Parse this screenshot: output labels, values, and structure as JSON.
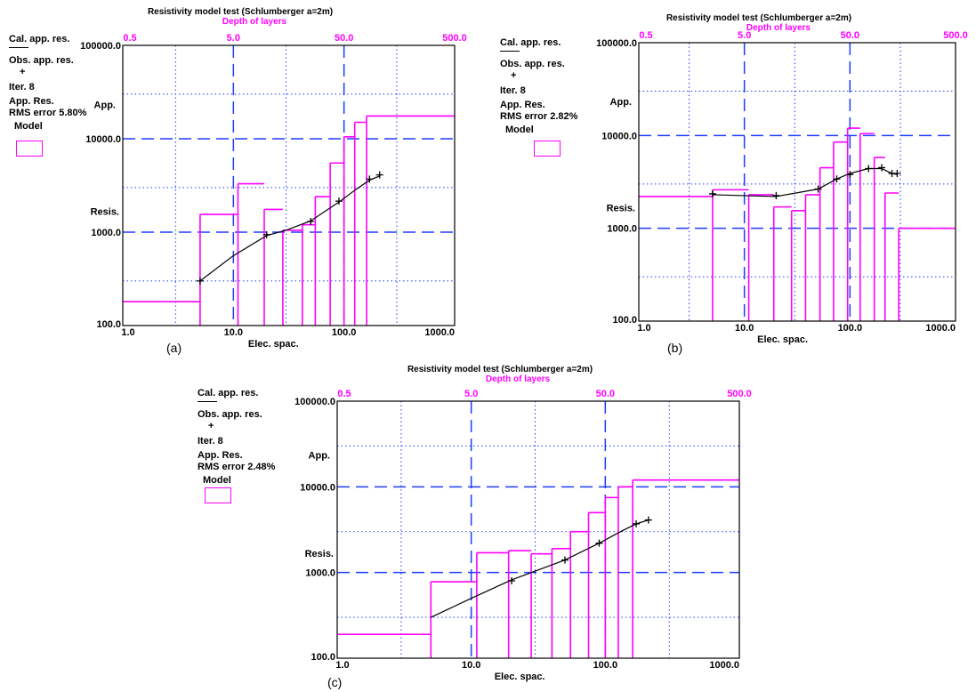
{
  "legend_text": {
    "cal": "Cal. app. res.",
    "obs": "Obs. app. res.",
    "plus": "+",
    "model": "Model"
  },
  "chart_data": [
    {
      "type": "line",
      "subfigure": "(a)",
      "title": "Resistivity model test (Schlumberger a=2m)",
      "top_axis_title": "Depth of layers",
      "top_ticks": [
        "0.5",
        "5.0",
        "50.0",
        "500.0"
      ],
      "xlabel": "Elec. spac.",
      "ylabel_top": "App.",
      "ylabel_bottom": "Resis.",
      "x_ticks": [
        "1.0",
        "10.0",
        "100.0",
        "1000.0"
      ],
      "y_ticks": [
        "100.0",
        "1000.0",
        "10000.0",
        "100000.0"
      ],
      "x_scale": "log",
      "y_scale": "log",
      "xlim": [
        1,
        1000
      ],
      "ylim": [
        100,
        100000
      ],
      "iter": "Iter. 8",
      "app_res": "App. Res.",
      "rms": "RMS error 5.80%",
      "calculated": {
        "x": [
          5,
          10,
          20,
          30,
          50,
          90,
          130,
          170,
          210
        ],
        "y": [
          300,
          560,
          920,
          1050,
          1320,
          2100,
          2900,
          3600,
          4000
        ]
      },
      "observed": {
        "x": [
          5,
          20,
          50,
          90,
          170,
          210
        ],
        "y": [
          300,
          940,
          1300,
          2150,
          3700,
          4100
        ]
      },
      "model_steps": [
        [
          1,
          180
        ],
        [
          5,
          1550
        ],
        [
          11,
          3300
        ],
        [
          19,
          1750
        ],
        [
          28,
          1050
        ],
        [
          42,
          1200
        ],
        [
          55,
          2400
        ],
        [
          75,
          5500
        ],
        [
          100,
          10500
        ],
        [
          125,
          15000
        ],
        [
          160,
          17500
        ],
        [
          1000,
          17500
        ]
      ]
    },
    {
      "type": "line",
      "subfigure": "(b)",
      "title": "Resistivity model test (Schlumberger a=2m)",
      "top_axis_title": "Depth of layers",
      "top_ticks": [
        "0.5",
        "5.0",
        "50.0",
        "500.0"
      ],
      "xlabel": "Elec. spac.",
      "ylabel_top": "App.",
      "ylabel_bottom": "Resis.",
      "x_ticks": [
        "1.0",
        "10.0",
        "100.0",
        "1000.0"
      ],
      "y_ticks": [
        "100.0",
        "1000.0",
        "10000.0",
        "100000.0"
      ],
      "x_scale": "log",
      "y_scale": "log",
      "xlim": [
        1,
        1000
      ],
      "ylim": [
        100,
        100000
      ],
      "iter": "Iter. 8",
      "app_res": "App. Res.",
      "rms": "RMS error 2.82%",
      "calculated": {
        "x": [
          5,
          10,
          20,
          50,
          75,
          100,
          150,
          200,
          250,
          280
        ],
        "y": [
          2300,
          2250,
          2200,
          2650,
          3400,
          3900,
          4400,
          4400,
          3900,
          3800
        ]
      },
      "observed": {
        "x": [
          5,
          20,
          50,
          75,
          100,
          150,
          200,
          250,
          280
        ],
        "y": [
          2350,
          2250,
          2650,
          3400,
          3800,
          4400,
          4500,
          3900,
          3900
        ]
      },
      "model_steps": [
        [
          1,
          2200
        ],
        [
          5,
          2600
        ],
        [
          11,
          2300
        ],
        [
          19,
          1700
        ],
        [
          28,
          1550
        ],
        [
          38,
          2300
        ],
        [
          52,
          4500
        ],
        [
          70,
          8500
        ],
        [
          95,
          12000
        ],
        [
          125,
          10500
        ],
        [
          170,
          5800
        ],
        [
          215,
          2400
        ],
        [
          290,
          1000
        ],
        [
          1000,
          1000
        ]
      ]
    },
    {
      "type": "line",
      "subfigure": "(c)",
      "title": "Resistivity model test (Schlumberger a=2m)",
      "top_axis_title": "Depth of layers",
      "top_ticks": [
        "0.5",
        "5.0",
        "50.0",
        "500.0"
      ],
      "xlabel": "Elec. spac.",
      "ylabel_top": "App.",
      "ylabel_bottom": "Resis.",
      "x_ticks": [
        "1.0",
        "10.0",
        "100.0",
        "1000.0"
      ],
      "y_ticks": [
        "100.0",
        "1000.0",
        "10000.0",
        "100000.0"
      ],
      "x_scale": "log",
      "y_scale": "log",
      "xlim": [
        1,
        1000
      ],
      "ylim": [
        100,
        100000
      ],
      "iter": "Iter. 8",
      "app_res": "App. Res.",
      "rms": "RMS error 2.48%",
      "calculated": {
        "x": [
          5,
          10,
          20,
          50,
          90,
          130,
          170,
          210
        ],
        "y": [
          300,
          500,
          820,
          1400,
          2200,
          3000,
          3700,
          4100
        ]
      },
      "observed": {
        "x": [
          20,
          50,
          90,
          170,
          210
        ],
        "y": [
          800,
          1400,
          2200,
          3700,
          4100
        ]
      },
      "model_steps": [
        [
          1,
          190
        ],
        [
          5,
          780
        ],
        [
          11,
          1700
        ],
        [
          19,
          1800
        ],
        [
          28,
          1650
        ],
        [
          40,
          1900
        ],
        [
          55,
          3000
        ],
        [
          75,
          5000
        ],
        [
          100,
          7500
        ],
        [
          125,
          10000
        ],
        [
          160,
          12000
        ],
        [
          1000,
          12000
        ]
      ]
    }
  ],
  "colors": {
    "grid_major": "#1f3cff",
    "grid_minor": "#1f3cff",
    "model": "#ff00ff",
    "curve": "#000000"
  }
}
